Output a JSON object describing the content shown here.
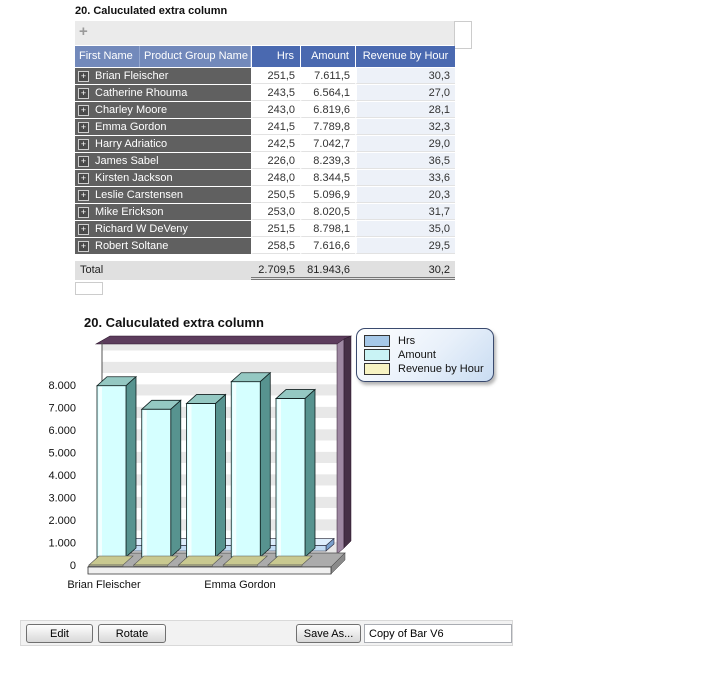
{
  "table_section": {
    "title": "20. Caluculated extra column",
    "add_icon": "+",
    "expand_icon": "+",
    "columns": [
      "First Name",
      "Product Group Name",
      "Hrs",
      "Amount",
      "Revenue by Hour"
    ],
    "rows": [
      {
        "name": "Brian Fleischer",
        "hrs": "251,5",
        "amount": "7.611,5",
        "revenue_by_hour": "30,3"
      },
      {
        "name": "Catherine Rhouma",
        "hrs": "243,5",
        "amount": "6.564,1",
        "revenue_by_hour": "27,0"
      },
      {
        "name": "Charley Moore",
        "hrs": "243,0",
        "amount": "6.819,6",
        "revenue_by_hour": "28,1"
      },
      {
        "name": "Emma Gordon",
        "hrs": "241,5",
        "amount": "7.789,8",
        "revenue_by_hour": "32,3"
      },
      {
        "name": "Harry Adriatico",
        "hrs": "242,5",
        "amount": "7.042,7",
        "revenue_by_hour": "29,0"
      },
      {
        "name": "James Sabel",
        "hrs": "226,0",
        "amount": "8.239,3",
        "revenue_by_hour": "36,5"
      },
      {
        "name": "Kirsten Jackson",
        "hrs": "248,0",
        "amount": "8.344,5",
        "revenue_by_hour": "33,6"
      },
      {
        "name": "Leslie Carstensen",
        "hrs": "250,5",
        "amount": "5.096,9",
        "revenue_by_hour": "20,3"
      },
      {
        "name": "Mike Erickson",
        "hrs": "253,0",
        "amount": "8.020,5",
        "revenue_by_hour": "31,7"
      },
      {
        "name": "Richard W DeVeny",
        "hrs": "251,5",
        "amount": "8.798,1",
        "revenue_by_hour": "35,0"
      },
      {
        "name": "Robert Soltane",
        "hrs": "258,5",
        "amount": "7.616,6",
        "revenue_by_hour": "29,5"
      }
    ],
    "total": {
      "label": "Total",
      "hrs": "2.709,5",
      "amount": "81.943,6",
      "revenue_by_hour": "30,2"
    }
  },
  "chart_section": {
    "title": "20. Caluculated extra column"
  },
  "chart_data": {
    "type": "bar",
    "style": "3d",
    "title": "20. Caluculated extra column",
    "categories": [
      "Brian Fleischer",
      "Catherine Rhouma",
      "Charley Moore",
      "Emma Gordon",
      "Harry Adriatico"
    ],
    "series": [
      {
        "name": "Hrs",
        "color": "#a6c8e8",
        "values": [
          251.5,
          243.5,
          243.0,
          241.5,
          242.5
        ]
      },
      {
        "name": "Amount",
        "color": "#c9f3f5",
        "values": [
          7611.5,
          6564.1,
          6819.6,
          7789.8,
          7042.7
        ]
      },
      {
        "name": "Revenue by Hour",
        "color": "#f7f3c2",
        "values": [
          30.3,
          27.0,
          28.1,
          32.3,
          29.0
        ]
      }
    ],
    "ylim": [
      0,
      8000
    ],
    "ytick_labels": [
      "0",
      "1.000",
      "2.000",
      "3.000",
      "4.000",
      "5.000",
      "6.000",
      "7.000",
      "8.000"
    ],
    "x_axis_labels_visible": [
      "Brian Fleischer",
      "Emma Gordon"
    ],
    "legend_position": "top-right",
    "grid": "striped-bands"
  },
  "toolbar": {
    "edit_label": "Edit",
    "rotate_label": "Rotate",
    "save_as_label": "Save As...",
    "save_name_value": "Copy of Bar V6"
  }
}
